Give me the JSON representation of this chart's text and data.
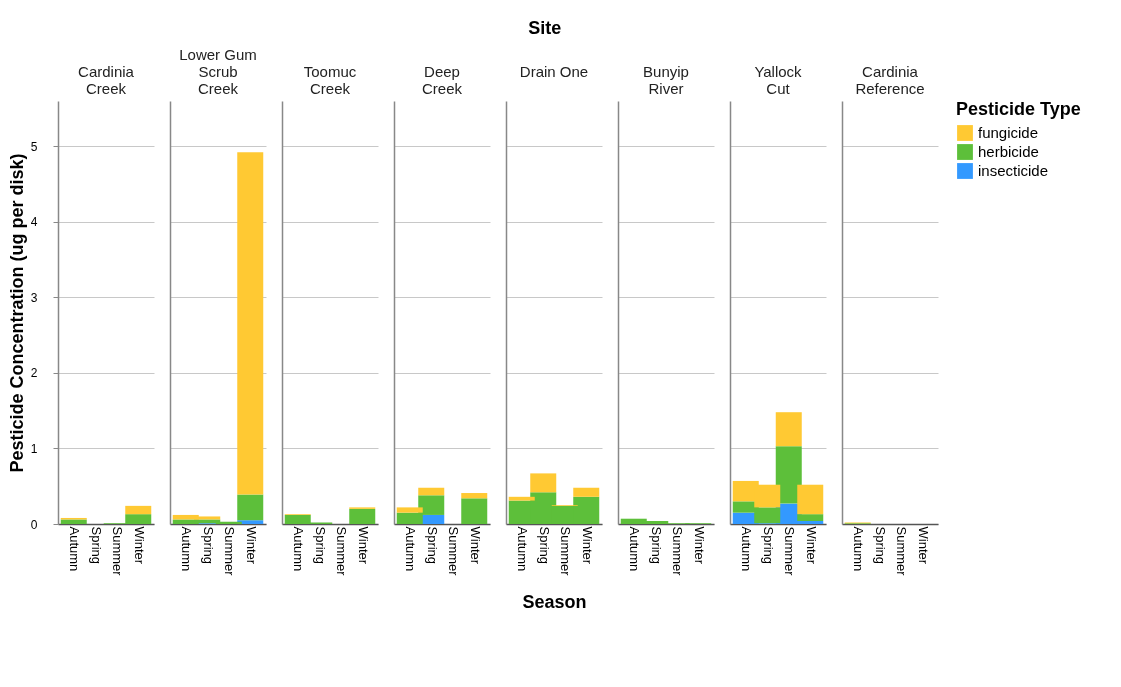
{
  "chart_data": [
    {
      "type": "bar",
      "title": "Cardinia Creek",
      "ylabel": "Pesticide Concentration (ug per disk)",
      "legend_title": "Pesticide Type",
      "legend": "top right",
      "stacked": true,
      "grid": "y",
      "categories": [
        "Autumn",
        "Spring",
        "Summer",
        "Winter"
      ],
      "ylim": [
        0,
        5.6
      ],
      "yticks": [
        0,
        1,
        2,
        3,
        4,
        5
      ],
      "series": [
        {
          "name": "insecticide",
          "color": "#3399ff",
          "values": [
            0,
            0,
            0,
            0
          ]
        },
        {
          "name": "herbicide",
          "color": "#5dbf3a",
          "values": [
            0.06,
            0,
            0.01,
            0.13
          ]
        },
        {
          "name": "fungicide",
          "color": "#ffc933",
          "values": [
            0.02,
            0,
            0,
            0.11
          ]
        }
      ]
    },
    {
      "type": "bar",
      "title": "Lower Gum Scrub Creek",
      "stacked": true,
      "grid": "y",
      "tick_labels": "x",
      "categories": [
        "Autumn",
        "Spring",
        "Summer",
        "Winter"
      ],
      "ylim": [
        0,
        5.6
      ],
      "yticks": [
        0,
        1,
        2,
        3,
        4,
        5
      ],
      "series": [
        {
          "color": "#3399ff",
          "values": [
            0,
            0.01,
            0,
            0.05
          ]
        },
        {
          "color": "#5dbf3a",
          "values": [
            0.06,
            0.05,
            0.03,
            0.34
          ]
        },
        {
          "color": "#ffc933",
          "values": [
            0.06,
            0.04,
            0,
            4.53
          ]
        }
      ]
    },
    {
      "type": "bar",
      "title": "Toomuc Creek",
      "stacked": true,
      "grid": "y",
      "tick_labels": "x",
      "categories": [
        "Autumn",
        "Spring",
        "Summer",
        "Winter"
      ],
      "ylim": [
        0,
        5.6
      ],
      "yticks": [
        0,
        1,
        2,
        3,
        4,
        5
      ],
      "series": [
        {
          "color": "#3399ff",
          "values": [
            0,
            0,
            0,
            0
          ]
        },
        {
          "color": "#5dbf3a",
          "values": [
            0.12,
            0.02,
            0,
            0.2
          ]
        },
        {
          "color": "#ffc933",
          "values": [
            0.01,
            0,
            0,
            0.02
          ]
        }
      ]
    },
    {
      "type": "bar",
      "title": "Deep Creek",
      "stacked": true,
      "grid": "y",
      "tick_labels": "x",
      "categories": [
        "Autumn",
        "Spring",
        "Summer",
        "Winter"
      ],
      "ylim": [
        0,
        5.6
      ],
      "yticks": [
        0,
        1,
        2,
        3,
        4,
        5
      ],
      "series": [
        {
          "color": "#3399ff",
          "values": [
            0,
            0.12,
            0,
            0
          ]
        },
        {
          "color": "#5dbf3a",
          "values": [
            0.15,
            0.26,
            0,
            0.34
          ]
        },
        {
          "color": "#ffc933",
          "values": [
            0.07,
            0.1,
            0,
            0.07
          ]
        }
      ]
    },
    {
      "type": "bar",
      "title": "Drain One",
      "annotations": [
        "Site"
      ],
      "xlabel": "Season",
      "stacked": true,
      "grid": "y",
      "tick_labels": "x",
      "categories": [
        "Autumn",
        "Spring",
        "Summer",
        "Winter"
      ],
      "ylim": [
        0,
        5.6
      ],
      "yticks": [
        0,
        1,
        2,
        3,
        4,
        5
      ],
      "series": [
        {
          "color": "#3399ff",
          "values": [
            0,
            0,
            0,
            0
          ]
        },
        {
          "color": "#5dbf3a",
          "values": [
            0.31,
            0.42,
            0.24,
            0.36
          ]
        },
        {
          "color": "#ffc933",
          "values": [
            0.05,
            0.25,
            0.01,
            0.12
          ]
        }
      ]
    },
    {
      "type": "bar",
      "title": "Bunyip River",
      "stacked": true,
      "grid": "y",
      "tick_labels": "x",
      "categories": [
        "Autumn",
        "Spring",
        "Summer",
        "Winter"
      ],
      "ylim": [
        0,
        5.6
      ],
      "yticks": [
        0,
        1,
        2,
        3,
        4,
        5
      ],
      "series": [
        {
          "color": "#3399ff",
          "values": [
            0,
            0,
            0,
            0
          ]
        },
        {
          "color": "#5dbf3a",
          "values": [
            0.07,
            0.04,
            0.01,
            0.01
          ]
        },
        {
          "color": "#ffc933",
          "values": [
            0,
            0,
            0,
            0
          ]
        }
      ]
    },
    {
      "type": "bar",
      "title": "Yallock Cut",
      "stacked": true,
      "grid": "y",
      "tick_labels": "x",
      "categories": [
        "Autumn",
        "Spring",
        "Summer",
        "Winter"
      ],
      "ylim": [
        0,
        5.6
      ],
      "yticks": [
        0,
        1,
        2,
        3,
        4,
        5
      ],
      "series": [
        {
          "color": "#3399ff",
          "values": [
            0.15,
            0.01,
            0.27,
            0.04
          ]
        },
        {
          "color": "#5dbf3a",
          "values": [
            0.15,
            0.21,
            0.76,
            0.09
          ]
        },
        {
          "color": "#ffc933",
          "values": [
            0.27,
            0.3,
            0.45,
            0.39
          ]
        }
      ]
    },
    {
      "type": "bar",
      "title": "Cardinia Reference",
      "stacked": true,
      "grid": "y",
      "tick_labels": "x",
      "categories": [
        "Autumn",
        "Spring",
        "Summer",
        "Winter"
      ],
      "ylim": [
        0,
        5.6
      ],
      "yticks": [
        0,
        1,
        2,
        3,
        4,
        5
      ],
      "series": [
        {
          "color": "#3399ff",
          "values": [
            0,
            0,
            0,
            0
          ]
        },
        {
          "color": "#5dbf3a",
          "values": [
            0.01,
            0,
            0,
            0
          ]
        },
        {
          "color": "#ffc933",
          "values": [
            0.01,
            0,
            0,
            0
          ]
        }
      ]
    }
  ]
}
